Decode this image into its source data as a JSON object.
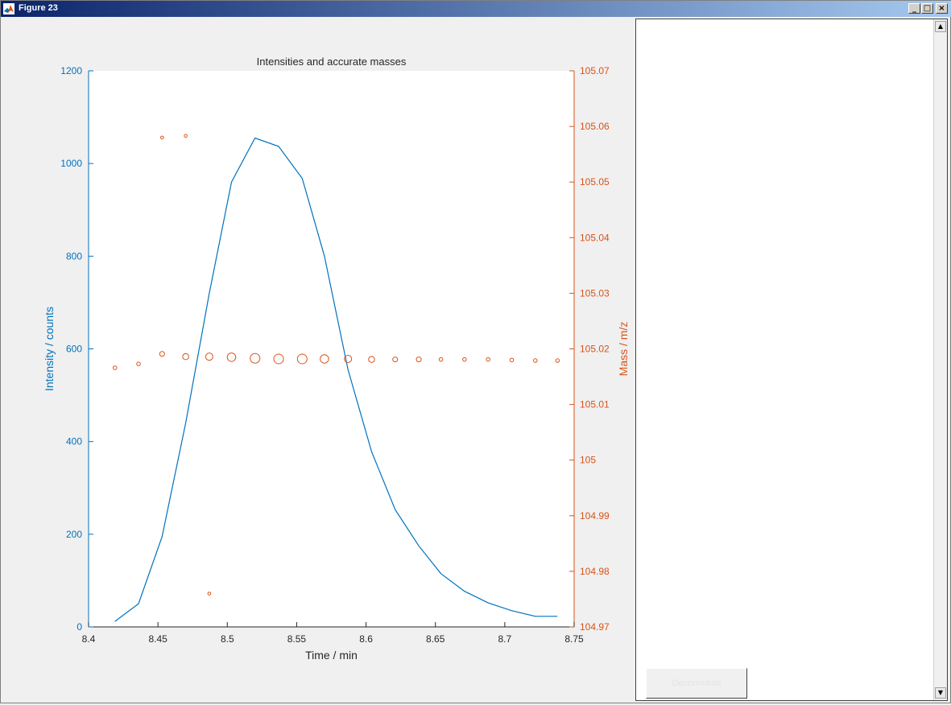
{
  "window": {
    "title": "Figure 23",
    "minimize_glyph": "_",
    "maximize_glyph": "□",
    "close_glyph": "×"
  },
  "colors": {
    "intensity": "#0072BD",
    "mass": "#D95319"
  },
  "side_panel": {
    "button_label": "Deconvolute",
    "scroll_up_glyph": "▲",
    "scroll_down_glyph": "▼"
  },
  "chart_data": {
    "type": "line",
    "title": "Intensities and accurate masses",
    "xlabel": "Time / min",
    "ylabel": "Intensity / counts",
    "y2label": "Mass / m/z",
    "xlim": [
      8.4,
      8.75
    ],
    "ylim": [
      0,
      1200
    ],
    "y2lim": [
      104.97,
      105.07
    ],
    "xticks": [
      "8.4",
      "8.45",
      "8.5",
      "8.55",
      "8.6",
      "8.65",
      "8.7",
      "8.75"
    ],
    "yticks": [
      "0",
      "200",
      "400",
      "600",
      "800",
      "1000",
      "1200"
    ],
    "y2ticks": [
      "104.97",
      "104.98",
      "104.99",
      "105",
      "105.01",
      "105.02",
      "105.03",
      "105.04",
      "105.05",
      "105.06",
      "105.07"
    ],
    "grid": false,
    "intensity_series": {
      "x": [
        8.419,
        8.436,
        8.453,
        8.47,
        8.487,
        8.503,
        8.52,
        8.537,
        8.554,
        8.57,
        8.587,
        8.604,
        8.621,
        8.638,
        8.654,
        8.671,
        8.688,
        8.705,
        8.722,
        8.738
      ],
      "y": [
        12,
        50,
        195,
        440,
        720,
        960,
        1055,
        1037,
        968,
        800,
        555,
        378,
        253,
        175,
        115,
        77,
        52,
        35,
        23,
        23
      ]
    },
    "mass_series": {
      "x": [
        8.419,
        8.436,
        8.453,
        8.47,
        8.487,
        8.503,
        8.52,
        8.537,
        8.554,
        8.57,
        8.587,
        8.604,
        8.621,
        8.638,
        8.654,
        8.671,
        8.688,
        8.705,
        8.722,
        8.738
      ],
      "y": [
        105.0166,
        105.0173,
        105.0191,
        105.0186,
        105.0186,
        105.0185,
        105.0183,
        105.0182,
        105.0182,
        105.0182,
        105.0182,
        105.0181,
        105.0181,
        105.0181,
        105.0181,
        105.0181,
        105.0181,
        105.018,
        105.0179,
        105.0179
      ],
      "marker_size": [
        1,
        1,
        2,
        3,
        4,
        5,
        6,
        6,
        6,
        5,
        4,
        3,
        2,
        2,
        1,
        1,
        1,
        1,
        1,
        1
      ]
    },
    "mass_outliers": {
      "x": [
        8.453,
        8.47,
        8.487
      ],
      "y": [
        105.058,
        105.0583,
        104.976
      ]
    }
  }
}
